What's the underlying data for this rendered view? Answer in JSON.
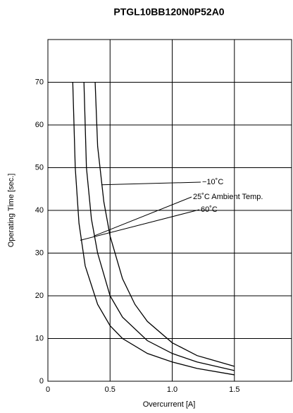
{
  "chart_data": {
    "type": "line",
    "title": "PTGL10BB120N0P52A0",
    "x_label": "Overcurrent [A]",
    "y_label": "Operating Time [sec.]",
    "xlim": [
      0,
      1.96
    ],
    "ylim": [
      0,
      80
    ],
    "xticks": [
      0,
      0.5,
      {
        "value": 1,
        "label": "1.0"
      },
      1.5
    ],
    "yticks": [
      0,
      10,
      20,
      30,
      40,
      50,
      60,
      70
    ],
    "grid": true,
    "series": [
      {
        "name": "−10˚C",
        "color": "#000000",
        "x": [
          0.38,
          0.4,
          0.45,
          0.5,
          0.6,
          0.7,
          0.8,
          1.0,
          1.2,
          1.5
        ],
        "values": [
          70,
          55,
          42,
          34,
          24,
          18,
          14,
          9,
          6,
          3.5
        ]
      },
      {
        "name": "25˚C Ambient Temp.",
        "color": "#000000",
        "x": [
          0.29,
          0.31,
          0.35,
          0.4,
          0.5,
          0.6,
          0.8,
          1.0,
          1.2,
          1.5
        ],
        "values": [
          70,
          50,
          38,
          30,
          20,
          15,
          9.5,
          6.5,
          4.5,
          2.5
        ]
      },
      {
        "name": "60˚C",
        "color": "#000000",
        "x": [
          0.2,
          0.22,
          0.25,
          0.3,
          0.4,
          0.5,
          0.6,
          0.8,
          1.0,
          1.2,
          1.5
        ],
        "values": [
          70,
          50,
          37,
          27,
          18,
          13,
          10,
          6.5,
          4.5,
          3,
          1.5
        ]
      }
    ]
  }
}
